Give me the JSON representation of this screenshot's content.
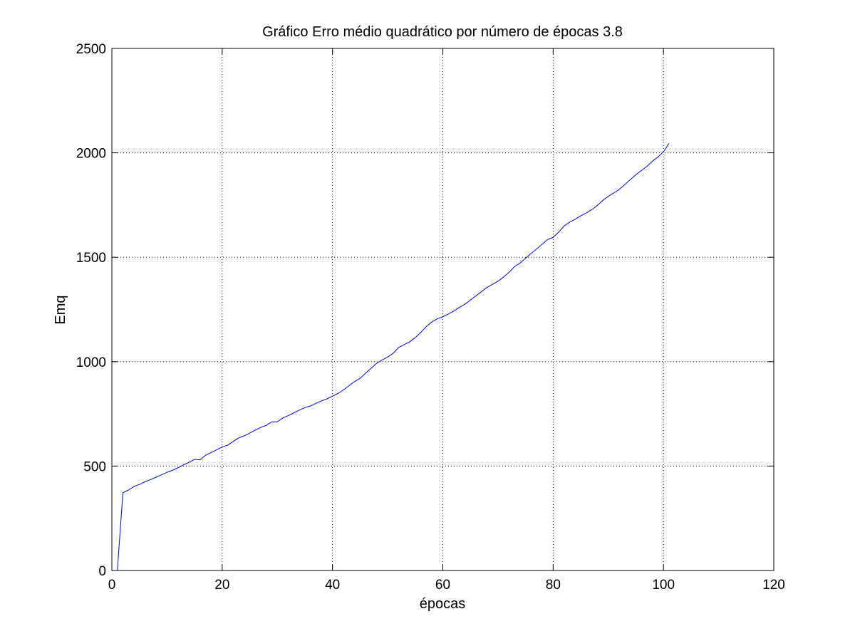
{
  "chart_data": {
    "type": "line",
    "title": "Gráfico Erro médio quadrático por número de épocas 3.8",
    "xlabel": "épocas",
    "ylabel": "Emq",
    "xlim": [
      0,
      120
    ],
    "ylim": [
      0,
      2500
    ],
    "xticks": [
      0,
      20,
      40,
      60,
      80,
      100,
      120
    ],
    "yticks": [
      0,
      500,
      1000,
      1500,
      2000,
      2500
    ],
    "grid": true,
    "grid_style": "dotted",
    "series": [
      {
        "color": "#0000ff",
        "x": [
          1,
          2,
          3,
          4,
          5,
          6,
          7,
          8,
          9,
          10,
          11,
          12,
          13,
          14,
          15,
          16,
          17,
          18,
          19,
          20,
          21,
          22,
          23,
          24,
          25,
          26,
          27,
          28,
          29,
          30,
          31,
          32,
          33,
          34,
          35,
          36,
          37,
          38,
          39,
          40,
          41,
          42,
          43,
          44,
          45,
          46,
          47,
          48,
          49,
          50,
          51,
          52,
          53,
          54,
          55,
          56,
          57,
          58,
          59,
          60,
          61,
          62,
          63,
          64,
          65,
          66,
          67,
          68,
          69,
          70,
          71,
          72,
          73,
          74,
          75,
          76,
          77,
          78,
          79,
          80,
          81,
          82,
          83,
          84,
          85,
          86,
          87,
          88,
          89,
          90,
          91,
          92,
          93,
          94,
          95,
          96,
          97,
          98,
          99,
          100,
          101
        ],
        "y": [
          0,
          372,
          385,
          402,
          412,
          425,
          435,
          446,
          458,
          470,
          480,
          492,
          506,
          518,
          532,
          530,
          552,
          565,
          578,
          592,
          600,
          618,
          635,
          645,
          658,
          672,
          685,
          695,
          712,
          712,
          730,
          742,
          755,
          768,
          780,
          788,
          800,
          812,
          822,
          835,
          848,
          865,
          885,
          905,
          920,
          945,
          968,
          992,
          1008,
          1022,
          1040,
          1068,
          1082,
          1095,
          1115,
          1140,
          1168,
          1190,
          1205,
          1215,
          1228,
          1242,
          1260,
          1275,
          1295,
          1315,
          1335,
          1355,
          1370,
          1385,
          1405,
          1428,
          1455,
          1472,
          1495,
          1518,
          1540,
          1562,
          1585,
          1595,
          1620,
          1650,
          1668,
          1682,
          1698,
          1712,
          1728,
          1748,
          1772,
          1792,
          1808,
          1825,
          1848,
          1872,
          1895,
          1915,
          1935,
          1960,
          1980,
          2005,
          2045
        ]
      }
    ]
  }
}
